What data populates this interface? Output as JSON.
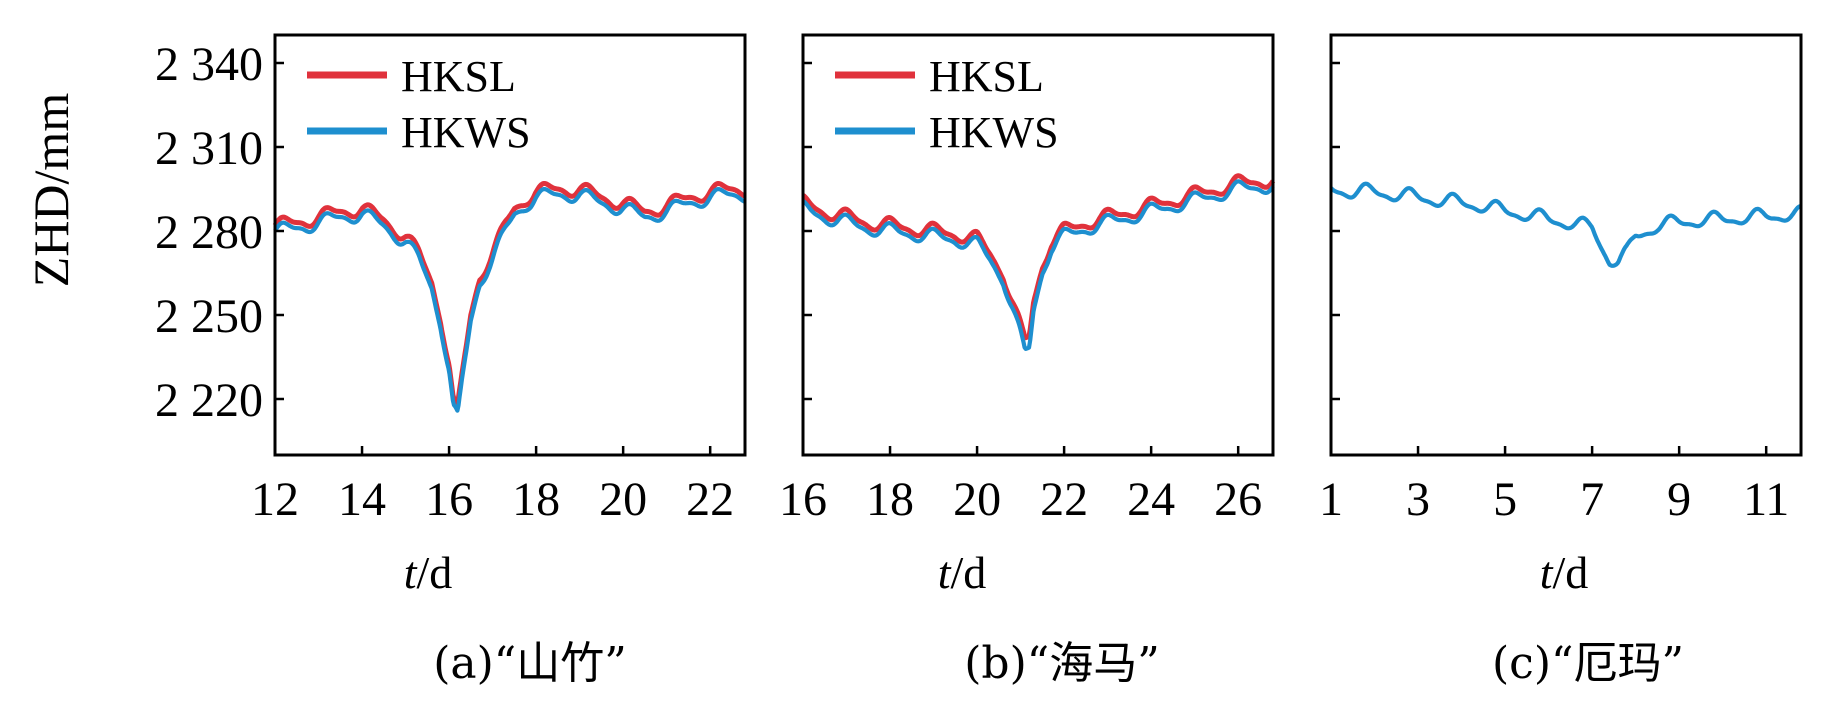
{
  "colors": {
    "HKSL": "#e0323c",
    "HKWS": "#1e8fcf",
    "axis": "#000000"
  },
  "figure": {
    "y_axis_label": "ZHD/mm",
    "x_axis_var": "t",
    "x_axis_unit": "/d"
  },
  "chart_data": [
    {
      "type": "line",
      "caption": "(a)“山竹”",
      "xlabel": "t/d",
      "ylabel": "ZHD/mm",
      "xlim": [
        12,
        22.8
      ],
      "ylim": [
        2200,
        2350
      ],
      "xticks": [
        12,
        14,
        16,
        18,
        20,
        22
      ],
      "xtick_labels": [
        "12",
        "14",
        "16",
        "18",
        "20",
        "22"
      ],
      "yticks": [
        2220,
        2250,
        2280,
        2310,
        2340
      ],
      "ytick_labels": [
        "2 220",
        "2 250",
        "2 280",
        "2 310",
        "2 340"
      ],
      "legend": "top-left",
      "series": [
        {
          "name": "HKSL",
          "color_key": "HKSL",
          "x": [
            12,
            12.5,
            13,
            13.5,
            14,
            14.5,
            15,
            15.3,
            15.6,
            15.8,
            16,
            16.1,
            16.2,
            16.3,
            16.5,
            16.7,
            17,
            17.3,
            17.5,
            17.8,
            18,
            18.5,
            19,
            19.5,
            20,
            20.5,
            21,
            21.5,
            22,
            22.5,
            22.8
          ],
          "y": [
            2282,
            2283,
            2285,
            2287,
            2288,
            2284,
            2278,
            2272,
            2262,
            2250,
            2232,
            2218,
            2216,
            2228,
            2250,
            2264,
            2272,
            2282,
            2288,
            2292,
            2294,
            2295,
            2295,
            2292,
            2290,
            2287,
            2289,
            2292,
            2294,
            2295,
            2295
          ]
        },
        {
          "name": "HKWS",
          "color_key": "HKWS",
          "x": [
            12,
            12.5,
            13,
            13.5,
            14,
            14.5,
            15,
            15.3,
            15.6,
            15.8,
            16,
            16.1,
            16.2,
            16.3,
            16.5,
            16.7,
            17,
            17.3,
            17.5,
            17.8,
            18,
            18.5,
            19,
            19.5,
            20,
            20.5,
            21,
            21.5,
            22,
            22.5,
            22.8
          ],
          "y": [
            2280,
            2281,
            2283,
            2285,
            2286,
            2282,
            2276,
            2270,
            2260,
            2248,
            2230,
            2216,
            2213,
            2226,
            2248,
            2262,
            2270,
            2280,
            2286,
            2290,
            2292,
            2293,
            2293,
            2290,
            2288,
            2285,
            2287,
            2290,
            2292,
            2293,
            2293
          ]
        }
      ]
    },
    {
      "type": "line",
      "caption": "(b)“海马”",
      "xlabel": "t/d",
      "ylabel": "ZHD/mm",
      "xlim": [
        16,
        26.8
      ],
      "ylim": [
        2200,
        2350
      ],
      "xticks": [
        16,
        18,
        20,
        22,
        24,
        26
      ],
      "xtick_labels": [
        "16",
        "18",
        "20",
        "22",
        "24",
        "26"
      ],
      "yticks": [
        2220,
        2250,
        2280,
        2310,
        2340
      ],
      "ytick_labels": [],
      "legend": "top-left",
      "series": [
        {
          "name": "HKSL",
          "color_key": "HKSL",
          "x": [
            16,
            16.5,
            17,
            17.5,
            18,
            18.5,
            19,
            19.5,
            20,
            20.3,
            20.6,
            20.8,
            21,
            21.1,
            21.2,
            21.3,
            21.5,
            21.7,
            22,
            22.5,
            23,
            23.5,
            24,
            24.5,
            25,
            25.5,
            26,
            26.5,
            26.8
          ],
          "y": [
            2290,
            2287,
            2285,
            2283,
            2282,
            2281,
            2280,
            2279,
            2277,
            2272,
            2265,
            2255,
            2245,
            2240,
            2242,
            2255,
            2268,
            2276,
            2280,
            2283,
            2285,
            2287,
            2289,
            2291,
            2293,
            2295,
            2297,
            2298,
            2298
          ]
        },
        {
          "name": "HKWS",
          "color_key": "HKWS",
          "x": [
            16,
            16.5,
            17,
            17.5,
            18,
            18.5,
            19,
            19.5,
            20,
            20.3,
            20.6,
            20.8,
            21,
            21.1,
            21.2,
            21.3,
            21.5,
            21.7,
            22,
            22.5,
            23,
            23.5,
            24,
            24.5,
            25,
            25.5,
            26,
            26.5,
            26.8
          ],
          "y": [
            2288,
            2285,
            2283,
            2281,
            2280,
            2279,
            2278,
            2277,
            2275,
            2270,
            2263,
            2253,
            2242,
            2236,
            2238,
            2252,
            2266,
            2274,
            2278,
            2281,
            2283,
            2285,
            2287,
            2289,
            2291,
            2293,
            2295,
            2296,
            2296
          ]
        }
      ]
    },
    {
      "type": "line",
      "caption": "(c)“厄玛”",
      "xlabel": "t/d",
      "ylabel": "ZHD/mm",
      "xlim": [
        1,
        11.8
      ],
      "ylim": [
        2200,
        2350
      ],
      "xticks": [
        1,
        3,
        5,
        7,
        9,
        11
      ],
      "xtick_labels": [
        "1",
        "3",
        "5",
        "7",
        "9",
        "11"
      ],
      "yticks": [
        2220,
        2250,
        2280,
        2310,
        2340
      ],
      "ytick_labels": [],
      "legend": "none",
      "series": [
        {
          "name": "HKWS",
          "color_key": "HKWS",
          "x": [
            1,
            1.5,
            2,
            2.5,
            3,
            3.5,
            4,
            4.5,
            5,
            5.5,
            6,
            6.5,
            7,
            7.2,
            7.4,
            7.6,
            7.8,
            8,
            8.5,
            9,
            9.5,
            10,
            10.5,
            11,
            11.5,
            11.8
          ],
          "y": [
            2295,
            2294,
            2294,
            2293,
            2292,
            2291,
            2290,
            2289,
            2287,
            2286,
            2284,
            2283,
            2281,
            2275,
            2270,
            2269,
            2272,
            2278,
            2282,
            2283,
            2284,
            2284,
            2285,
            2285,
            2286,
            2286
          ]
        }
      ]
    }
  ]
}
